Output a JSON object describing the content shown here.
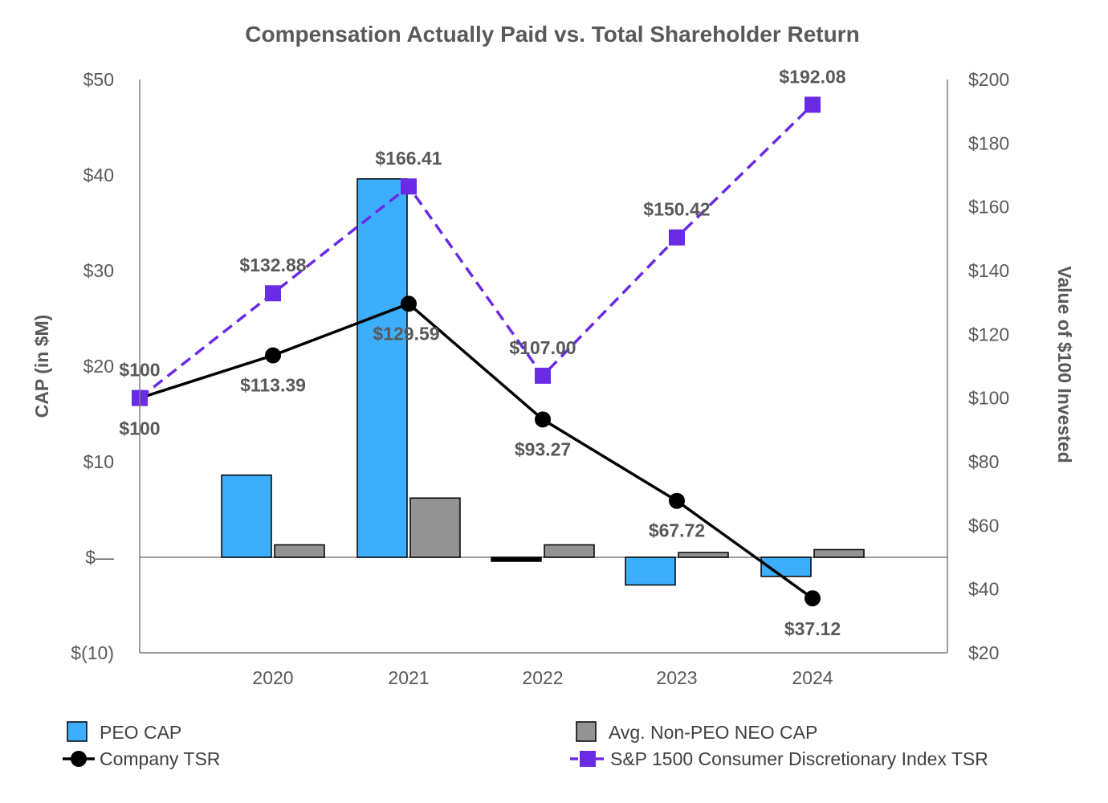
{
  "chart_data": {
    "type": "bar+line",
    "title": "Compensation Actually Paid vs. Total Shareholder Return",
    "categories": [
      "2020",
      "2021",
      "2022",
      "2023",
      "2024"
    ],
    "y_left": {
      "label": "CAP (in $M)",
      "range": [
        -10,
        50
      ],
      "ticks": [
        50,
        40,
        30,
        20,
        10,
        0,
        -10
      ],
      "tick_labels": [
        "$50",
        "$40",
        "$30",
        "$20",
        "$10",
        "$—",
        "$(10)"
      ]
    },
    "y_right": {
      "label": "Value of $100 Invested",
      "range": [
        20,
        200
      ],
      "ticks": [
        200,
        180,
        160,
        140,
        120,
        100,
        80,
        60,
        40,
        20
      ],
      "tick_labels": [
        "$200",
        "$180",
        "$160",
        "$140",
        "$120",
        "$100",
        "$80",
        "$60",
        "$40",
        "$20"
      ]
    },
    "bar_series": [
      {
        "name": "PEO CAP",
        "color": "#3DAEFC",
        "values": [
          8.6,
          39.6,
          -0.3,
          -2.9,
          -2.0
        ]
      },
      {
        "name": "Avg. Non-PEO NEO CAP",
        "color": "#939393",
        "values": [
          1.3,
          6.2,
          1.3,
          0.5,
          0.8
        ]
      }
    ],
    "line_series": [
      {
        "name": "Company TSR",
        "color": "#000000",
        "marker": "circle",
        "style": "solid",
        "x": [
          "base",
          "2020",
          "2021",
          "2022",
          "2023",
          "2024"
        ],
        "values": [
          100,
          113.39,
          129.59,
          93.27,
          67.72,
          37.12
        ],
        "labels": [
          "$100",
          "$113.39",
          "$129.59",
          "$93.27",
          "$67.72",
          "$37.12"
        ]
      },
      {
        "name": "S&P 1500 Consumer Discretionary Index TSR",
        "color": "#6A2BE5",
        "marker": "square",
        "style": "dashed",
        "x": [
          "base",
          "2020",
          "2021",
          "2022",
          "2023",
          "2024"
        ],
        "values": [
          100,
          132.88,
          166.41,
          107.0,
          150.42,
          192.08
        ],
        "labels": [
          "$100",
          "$132.88",
          "$166.41",
          "$107.00",
          "$150.42",
          "$192.08"
        ]
      }
    ],
    "legend": [
      {
        "name": "PEO CAP",
        "kind": "bar",
        "color": "#3DAEFC"
      },
      {
        "name": "Avg. Non-PEO NEO CAP",
        "kind": "bar",
        "color": "#939393"
      },
      {
        "name": "Company TSR",
        "kind": "line-circle",
        "color": "#000000"
      },
      {
        "name": "S&P 1500 Consumer Discretionary Index TSR",
        "kind": "line-square",
        "color": "#6A2BE5"
      }
    ],
    "legend_position": "bottom"
  }
}
